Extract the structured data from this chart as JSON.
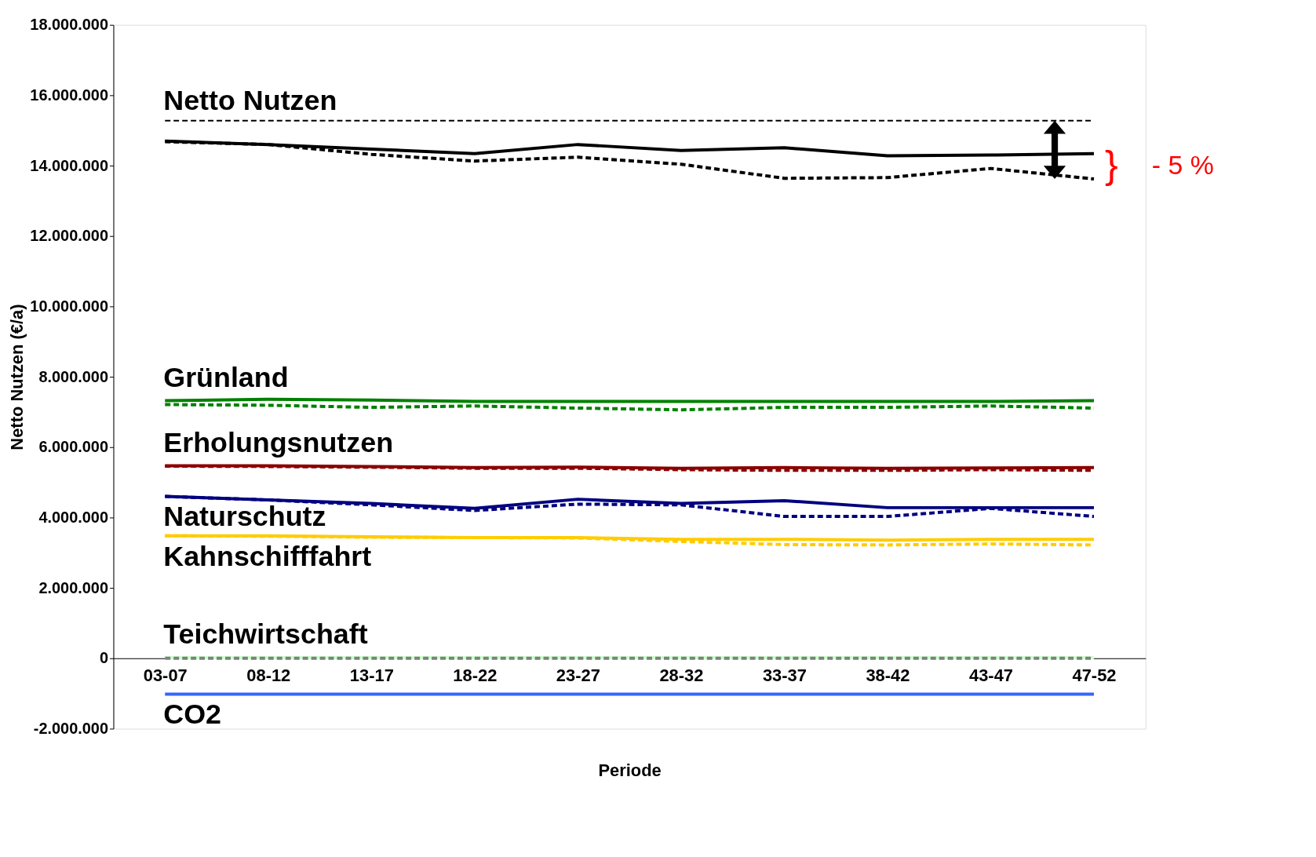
{
  "chart_data": {
    "type": "line",
    "xlabel": "Periode",
    "ylabel": "Netto Nutzen (€/a)",
    "categories": [
      "03-07",
      "08-12",
      "13-17",
      "18-22",
      "23-27",
      "28-32",
      "33-37",
      "38-42",
      "43-47",
      "47-52"
    ],
    "series": [
      {
        "color": "#000000",
        "line_style": "solid",
        "values": [
          14700000,
          14600000,
          14470000,
          14340000,
          14600000,
          14430000,
          14510000,
          14280000,
          14300000,
          14340000
        ]
      },
      {
        "color": "#000000",
        "line_style": "dashed",
        "values": [
          14680000,
          14600000,
          14320000,
          14130000,
          14240000,
          14040000,
          13640000,
          13660000,
          13920000,
          13620000
        ]
      },
      {
        "color": "#008000",
        "line_style": "solid",
        "values": [
          7320000,
          7360000,
          7340000,
          7300000,
          7300000,
          7300000,
          7300000,
          7300000,
          7300000,
          7320000
        ]
      },
      {
        "color": "#008000",
        "line_style": "dashed",
        "values": [
          7210000,
          7190000,
          7130000,
          7170000,
          7110000,
          7060000,
          7130000,
          7130000,
          7170000,
          7110000
        ]
      },
      {
        "color": "#8b0000",
        "line_style": "solid",
        "values": [
          5470000,
          5470000,
          5450000,
          5420000,
          5430000,
          5400000,
          5420000,
          5400000,
          5410000,
          5420000
        ]
      },
      {
        "color": "#8b0000",
        "line_style": "dashed",
        "values": [
          5460000,
          5450000,
          5430000,
          5400000,
          5400000,
          5360000,
          5340000,
          5340000,
          5360000,
          5340000
        ]
      },
      {
        "color": "#000080",
        "line_style": "solid",
        "values": [
          4600000,
          4500000,
          4400000,
          4260000,
          4520000,
          4400000,
          4480000,
          4280000,
          4280000,
          4280000
        ]
      },
      {
        "color": "#000080",
        "line_style": "dashed",
        "values": [
          4600000,
          4500000,
          4360000,
          4200000,
          4380000,
          4360000,
          4030000,
          4030000,
          4260000,
          4030000
        ]
      },
      {
        "color": "#ffcc00",
        "line_style": "solid",
        "values": [
          3480000,
          3480000,
          3450000,
          3430000,
          3430000,
          3380000,
          3380000,
          3360000,
          3380000,
          3380000
        ]
      },
      {
        "color": "#ffcc00",
        "line_style": "dashed",
        "values": [
          3480000,
          3470000,
          3440000,
          3430000,
          3420000,
          3320000,
          3230000,
          3220000,
          3250000,
          3220000
        ]
      },
      {
        "color": "#ccffcc",
        "line_style": "solid",
        "values": [
          20000,
          20000,
          20000,
          20000,
          20000,
          20000,
          20000,
          20000,
          20000,
          20000
        ]
      },
      {
        "color": "#808080",
        "line_style": "dashed",
        "values": [
          0,
          0,
          0,
          0,
          0,
          0,
          0,
          0,
          0,
          0
        ]
      },
      {
        "color": "#3366ff",
        "line_style": "solid",
        "values": [
          -1020000,
          -1020000,
          -1020000,
          -1020000,
          -1020000,
          -1020000,
          -1020000,
          -1020000,
          -1020000,
          -1020000
        ]
      }
    ],
    "ref_lines": [
      {
        "axis": "y",
        "value": 15280000,
        "label": "Netto Nutzen",
        "color": "#000000",
        "line_style": "dashed"
      }
    ],
    "annotations": [
      {
        "text": "Grünland",
        "x": "03-07",
        "y": 7320000
      },
      {
        "text": "Erholungsnutzen",
        "x": "03-07",
        "y": 5470000
      },
      {
        "text": "Naturschutz",
        "x": "03-07",
        "y": 4600000
      },
      {
        "text": "Kahnschifffahrt",
        "x": "03-07",
        "y": 3480000
      },
      {
        "text": "Teichwirtschaft",
        "x": "03-07",
        "y": 20000
      },
      {
        "text": "CO2",
        "x": "03-07",
        "y": -1020000
      },
      "}",
      "- 5 %"
    ],
    "ylim": [
      -2000000,
      18000000
    ],
    "yticks": [
      {
        "value": -2000000,
        "label": "-2.000.000"
      },
      0,
      {
        "value": 2000000,
        "label": "2.000.000"
      },
      {
        "value": 4000000,
        "label": "4.000.000"
      },
      {
        "value": 6000000,
        "label": "6.000.000"
      },
      {
        "value": 8000000,
        "label": "8.000.000"
      },
      {
        "value": 10000000,
        "label": "10.000.000"
      },
      {
        "value": 12000000,
        "label": "12.000.000"
      },
      {
        "value": 14000000,
        "label": "14.000.000"
      },
      {
        "value": 16000000,
        "label": "16.000.000"
      },
      {
        "value": 18000000,
        "label": "18.000.000"
      }
    ],
    "grid": false,
    "marker": "none"
  }
}
